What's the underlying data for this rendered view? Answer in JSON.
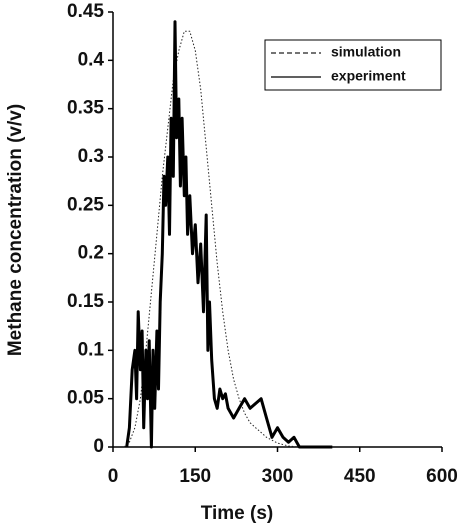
{
  "chart_data": {
    "type": "line",
    "x_label": "Time (s)",
    "y_label": "Methane concentration (v/v)",
    "xlim": [
      0,
      600
    ],
    "xticks": [
      0,
      150,
      300,
      450,
      600
    ],
    "ylim": [
      0,
      0.45
    ],
    "yticks": [
      0,
      0.05,
      0.1,
      0.15,
      0.2,
      0.25,
      0.3,
      0.35,
      0.4,
      0.45
    ],
    "legend": "upper right",
    "series": [
      {
        "name": "simulation",
        "color": "#222222",
        "style": "dotted",
        "x": [
          20,
          30,
          40,
          50,
          60,
          70,
          80,
          90,
          100,
          110,
          120,
          130,
          140,
          150,
          160,
          170,
          180,
          190,
          200,
          210,
          220,
          230,
          240,
          250,
          260,
          270,
          280,
          290,
          300,
          320,
          340
        ],
        "values": [
          0,
          0.005,
          0.02,
          0.05,
          0.1,
          0.16,
          0.22,
          0.28,
          0.33,
          0.38,
          0.41,
          0.43,
          0.43,
          0.41,
          0.37,
          0.31,
          0.25,
          0.19,
          0.14,
          0.1,
          0.07,
          0.05,
          0.035,
          0.025,
          0.02,
          0.015,
          0.01,
          0.007,
          0.004,
          0.001,
          0
        ]
      },
      {
        "name": "experiment",
        "color": "#000000",
        "style": "solid",
        "x": [
          25,
          30,
          35,
          40,
          43,
          46,
          50,
          53,
          56,
          60,
          63,
          66,
          70,
          73,
          76,
          80,
          83,
          86,
          90,
          93,
          96,
          100,
          103,
          106,
          110,
          113,
          116,
          120,
          123,
          126,
          130,
          133,
          136,
          140,
          145,
          150,
          155,
          160,
          165,
          170,
          173,
          176,
          180,
          185,
          190,
          195,
          200,
          205,
          210,
          220,
          230,
          240,
          250,
          260,
          270,
          280,
          290,
          300,
          310,
          320,
          330,
          340,
          360,
          400
        ],
        "values": [
          0,
          0.02,
          0.08,
          0.1,
          0.05,
          0.14,
          0.08,
          0.12,
          0.02,
          0.1,
          0.05,
          0.11,
          0,
          0.1,
          0.04,
          0.12,
          0.06,
          0.15,
          0.2,
          0.28,
          0.25,
          0.3,
          0.22,
          0.34,
          0.28,
          0.44,
          0.32,
          0.36,
          0.27,
          0.34,
          0.26,
          0.3,
          0.22,
          0.26,
          0.2,
          0.23,
          0.17,
          0.21,
          0.14,
          0.24,
          0.1,
          0.15,
          0.09,
          0.05,
          0.04,
          0.06,
          0.05,
          0.055,
          0.04,
          0.03,
          0.04,
          0.05,
          0.04,
          0.045,
          0.05,
          0.03,
          0.01,
          0.02,
          0.01,
          0.005,
          0.01,
          0,
          0,
          0
        ]
      }
    ]
  }
}
